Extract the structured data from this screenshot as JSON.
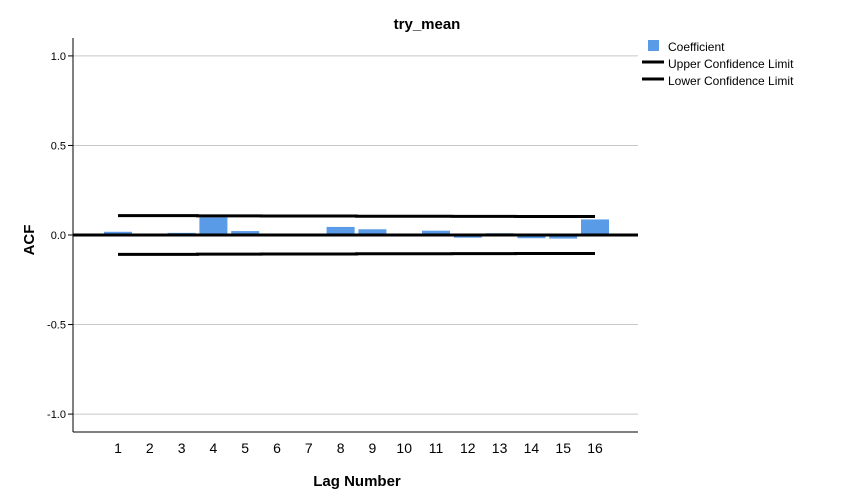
{
  "chart_data": {
    "type": "bar",
    "title": "try_mean",
    "xlabel": "Lag Number",
    "ylabel": "ACF",
    "categories": [
      "1",
      "2",
      "3",
      "4",
      "5",
      "6",
      "7",
      "8",
      "9",
      "10",
      "11",
      "12",
      "13",
      "14",
      "15",
      "16"
    ],
    "series": [
      {
        "name": "Coefficient",
        "values": [
          0.018,
          0.003,
          0.012,
          0.098,
          0.022,
          -0.003,
          -0.005,
          0.045,
          0.032,
          -0.004,
          0.024,
          -0.015,
          0.01,
          -0.018,
          -0.02,
          0.087
        ],
        "color": "#5a9be8"
      }
    ],
    "upper_confidence_limit": {
      "name": "Upper Confidence Limit",
      "values": [
        0.108,
        0.108,
        0.108,
        0.107,
        0.107,
        0.106,
        0.106,
        0.106,
        0.105,
        0.105,
        0.105,
        0.104,
        0.104,
        0.103,
        0.103,
        0.103
      ]
    },
    "lower_confidence_limit": {
      "name": "Lower Confidence Limit",
      "values": [
        -0.108,
        -0.108,
        -0.108,
        -0.107,
        -0.107,
        -0.106,
        -0.106,
        -0.106,
        -0.105,
        -0.105,
        -0.105,
        -0.104,
        -0.104,
        -0.103,
        -0.103,
        -0.103
      ]
    },
    "ylim": [
      -1.1,
      1.1
    ],
    "yticks": [
      {
        "value": -1.0,
        "label": "-1.0"
      },
      {
        "value": -0.5,
        "label": "-0.5"
      },
      {
        "value": 0.0,
        "label": "0.0"
      },
      {
        "value": 0.5,
        "label": "0.5"
      },
      {
        "value": 1.0,
        "label": "1.0"
      }
    ],
    "grid": true,
    "legend_position": "top-right",
    "line_color": "#000000",
    "grid_color": "#c8c8c8"
  }
}
